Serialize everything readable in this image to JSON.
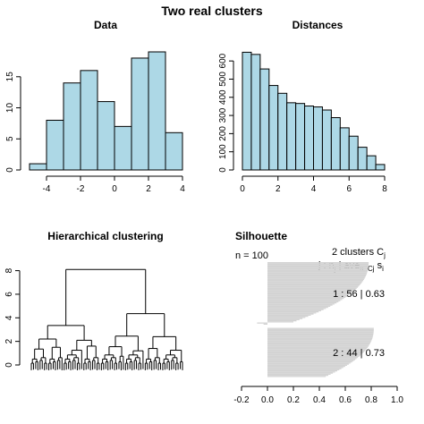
{
  "figure": {
    "title": "Two real clusters"
  },
  "chart_data": [
    {
      "type": "bar",
      "title": "Data",
      "bar_color": "#add8e6",
      "bin_edges": [
        -5,
        -4,
        -3,
        -2,
        -1,
        0,
        1,
        2,
        3,
        4
      ],
      "values": [
        1,
        8,
        14,
        16,
        11,
        7,
        18,
        19,
        6
      ],
      "xlim": [
        -5,
        4
      ],
      "ylim": [
        0,
        19
      ],
      "xticks": [
        -4,
        -2,
        0,
        2,
        4
      ],
      "yticks": [
        0,
        5,
        10,
        15
      ]
    },
    {
      "type": "bar",
      "title": "Distances",
      "bar_color": "#add8e6",
      "bin_edges": [
        0,
        0.5,
        1,
        1.5,
        2,
        2.5,
        3,
        3.5,
        4,
        4.5,
        5,
        5.5,
        6,
        6.5,
        7,
        7.5,
        8
      ],
      "values": [
        648,
        636,
        556,
        465,
        422,
        370,
        366,
        352,
        347,
        330,
        288,
        232,
        186,
        125,
        78,
        30
      ],
      "xlim": [
        0,
        8
      ],
      "ylim": [
        0,
        650
      ],
      "xticks": [
        0,
        2,
        4,
        6,
        8
      ],
      "yticks": [
        0,
        100,
        200,
        300,
        400,
        500,
        600
      ]
    },
    {
      "type": "dendrogram",
      "title": "Hierarchical clustering",
      "root_height": 8.1,
      "clusters": [
        {
          "height": 3.35,
          "children": [
            {
              "height": 2.2,
              "children": [
                {
                  "height": 1.35,
                  "leaves": 8
                },
                {
                  "height": 1.5,
                  "leaves": 7
                }
              ]
            },
            {
              "height": 2.1,
              "children": [
                {
                  "height": 1.25,
                  "leaves": 9
                },
                {
                  "height": 1.6,
                  "leaves": 8
                }
              ]
            }
          ]
        },
        {
          "height": 4.35,
          "children": [
            {
              "height": 2.45,
              "children": [
                {
                  "height": 1.55,
                  "leaves": 11
                },
                {
                  "height": 1.2,
                  "leaves": 9
                }
              ]
            },
            {
              "height": 2.4,
              "children": [
                {
                  "height": 1.4,
                  "leaves": 8
                },
                {
                  "height": 1.25,
                  "leaves": 10
                }
              ]
            }
          ]
        }
      ],
      "ylim": [
        0,
        8.5
      ],
      "yticks": [
        0,
        2,
        4,
        6,
        8
      ]
    },
    {
      "type": "bar",
      "orientation": "horizontal",
      "title": "Silhouette",
      "n_label": "n = 100",
      "header_line1": "2  clusters  C",
      "header_line1_sub": "j",
      "header_line2": "j :  n",
      "header_line2_sub": "j",
      "header_line2_mid": " | ave",
      "header_line2_mid_sub": "i∈Cj",
      "header_line2_end": "  s",
      "header_line2_end_sub": "i",
      "bar_color": "#d3d3d3",
      "xlim": [
        -0.2,
        1.0
      ],
      "xticks": [
        -0.2,
        0.0,
        0.2,
        0.4,
        0.6,
        0.8,
        1.0
      ],
      "xtick_labels": [
        "-0.2",
        "0.0",
        "0.2",
        "0.4",
        "0.6",
        "0.8",
        "1.0"
      ],
      "clusters": [
        {
          "label": "1 :  56  |  0.63",
          "size": 56,
          "s_max": 0.78,
          "s_min": 0.2,
          "negatives": [
            -0.08,
            -0.03
          ]
        },
        {
          "label": "2 :  44  |  0.73",
          "size": 44,
          "s_max": 0.82,
          "s_min": 0.45,
          "negatives": []
        }
      ]
    }
  ]
}
